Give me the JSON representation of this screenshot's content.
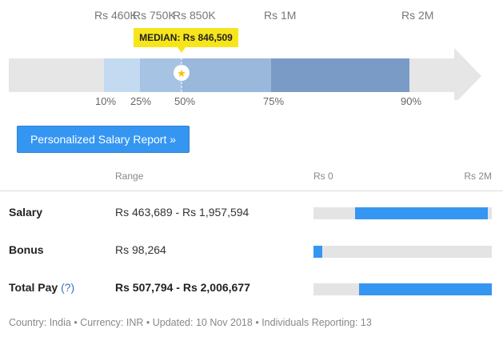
{
  "distribution": {
    "tick_labels": [
      {
        "label": "Rs 460K",
        "value": 460000
      },
      {
        "label": "Rs 750K",
        "value": 750000
      },
      {
        "label": "Rs 850K",
        "value": 850000
      },
      {
        "label": "Rs 1M",
        "value": 1000000
      },
      {
        "label": "Rs 2M",
        "value": 2000000
      }
    ],
    "percentiles": [
      "10%",
      "25%",
      "50%",
      "75%",
      "90%"
    ],
    "median_label": "MEDIAN: Rs 846,509",
    "median_value": 846509,
    "colors": {
      "arrow": "#e6e6e6",
      "band_p10_p25": "#c3daf0",
      "band_p25_p50": "#a6c3e4",
      "band_p50_p75": "#9ab7dc",
      "band_p75_p90": "#7b9bc7",
      "median_tag": "#f7e51c",
      "median_star": "#f2c200"
    }
  },
  "report_button": {
    "label": "Personalized Salary Report »"
  },
  "table": {
    "header": {
      "range": "Range",
      "scale_min": "Rs 0",
      "scale_max": "Rs 2M"
    },
    "scale_max_value": 2000000,
    "rows": [
      {
        "label": "Salary",
        "value": "Rs 463,689 - Rs 1,957,594",
        "low": 463689,
        "high": 1957594,
        "help": ""
      },
      {
        "label": "Bonus",
        "value": "Rs 98,264",
        "low": 0,
        "high": 98264,
        "help": ""
      },
      {
        "label": "Total Pay",
        "value": "Rs 507,794 - Rs 2,006,677",
        "low": 507794,
        "high": 2006677,
        "help": "(?)"
      }
    ]
  },
  "footer": {
    "country": "Country: India",
    "currency": "Currency: INR",
    "updated": "Updated: 10 Nov 2018",
    "reporting": "Individuals Reporting: 13",
    "separator": "•"
  },
  "colors": {
    "accent": "#3596f2",
    "track": "#e4e4e4"
  }
}
